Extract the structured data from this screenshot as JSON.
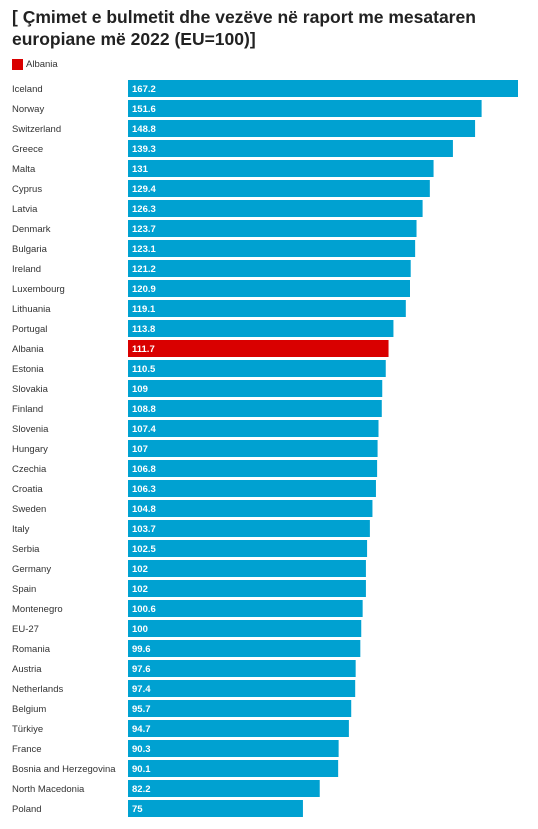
{
  "title": "[ Çmimet e bulmetit dhe vezëve në raport me mesataren europiane më 2022 (EU=100)]",
  "legend": {
    "label": "Albania",
    "color": "#d90000"
  },
  "colors": {
    "bar": "#00a1d1",
    "highlight": "#d90000"
  },
  "chart_data": {
    "type": "bar",
    "orientation": "horizontal",
    "highlight": "Albania",
    "categories": [
      "Iceland",
      "Norway",
      "Switzerland",
      "Greece",
      "Malta",
      "Cyprus",
      "Latvia",
      "Denmark",
      "Bulgaria",
      "Ireland",
      "Luxembourg",
      "Lithuania",
      "Portugal",
      "Albania",
      "Estonia",
      "Slovakia",
      "Finland",
      "Slovenia",
      "Hungary",
      "Czechia",
      "Croatia",
      "Sweden",
      "Italy",
      "Serbia",
      "Germany",
      "Spain",
      "Montenegro",
      "EU-27",
      "Romania",
      "Austria",
      "Netherlands",
      "Belgium",
      "Türkiye",
      "France",
      "Bosnia and Herzegovina",
      "North Macedonia",
      "Poland"
    ],
    "values": [
      167.2,
      151.6,
      148.8,
      139.3,
      131,
      129.4,
      126.3,
      123.7,
      123.1,
      121.2,
      120.9,
      119.1,
      113.8,
      111.7,
      110.5,
      109,
      108.8,
      107.4,
      107,
      106.8,
      106.3,
      104.8,
      103.7,
      102.5,
      102,
      102,
      100.6,
      100,
      99.6,
      97.6,
      97.4,
      95.7,
      94.7,
      90.3,
      90.1,
      82.2,
      75
    ],
    "xlim": [
      0,
      167.2
    ],
    "grid": false
  }
}
